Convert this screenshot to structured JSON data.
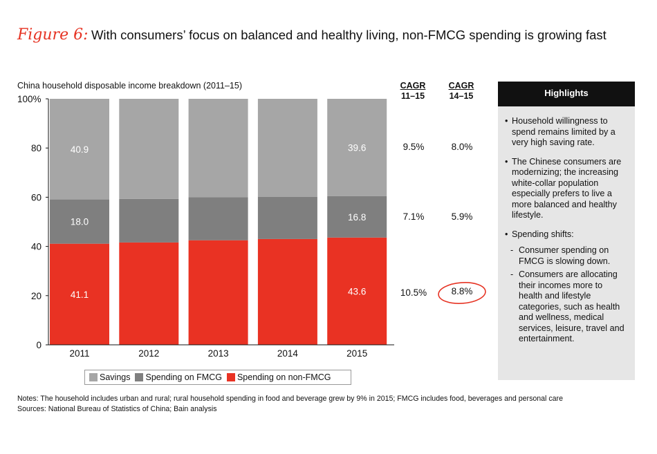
{
  "figure": {
    "label": "Figure 6:",
    "title": "With consumers’ focus on balanced and healthy living, non-FMCG spending is growing fast"
  },
  "chart_data": {
    "type": "bar",
    "stacked": true,
    "title": "China household disposable income breakdown (2011–15)",
    "categories": [
      "2011",
      "2012",
      "2013",
      "2014",
      "2015"
    ],
    "ylim": [
      0,
      100
    ],
    "y_ticks": [
      "0",
      "20",
      "40",
      "60",
      "80",
      "100%"
    ],
    "series": [
      {
        "name": "Spending on non-FMCG",
        "color": "#e93223",
        "values": [
          41.1,
          41.6,
          42.5,
          43.0,
          43.6
        ],
        "labels": [
          "41.1",
          "",
          "",
          "",
          "43.6"
        ]
      },
      {
        "name": "Spending on FMCG",
        "color": "#7f7f7f",
        "values": [
          18.0,
          17.7,
          17.5,
          17.2,
          16.8
        ],
        "labels": [
          "18.0",
          "",
          "",
          "",
          "16.8"
        ]
      },
      {
        "name": "Savings",
        "color": "#a6a6a6",
        "values": [
          40.9,
          40.7,
          40.0,
          39.8,
          39.6
        ],
        "labels": [
          "40.9",
          "",
          "",
          "",
          "39.6"
        ]
      }
    ],
    "legend_position": "bottom",
    "grid": false
  },
  "cagr": {
    "head1_line1": "CAGR",
    "head1_line2": "11–15",
    "head2_line1": "CAGR",
    "head2_line2": "14–15",
    "savings": [
      "9.5%",
      "8.0%"
    ],
    "fmcg": [
      "7.1%",
      "5.9%"
    ],
    "non_fmcg": [
      "10.5%",
      "8.8%"
    ],
    "circle_color": "#e63323"
  },
  "highlights": {
    "heading": "Highlights",
    "b1": "Household willingness to spend remains limited by a very high saving rate.",
    "b2": "The Chinese consumers are modernizing; the increasing white-collar population especially prefers to live a more balanced and healthy lifestyle.",
    "b3": "Spending shifts:",
    "s1": "Consumer spending on FMCG is slowing down.",
    "s2": "Consumers are allocating their incomes more to health and lifestyle categories, such as health and wellness, medical services, leisure, travel and entertainment."
  },
  "notes": {
    "line1": "Notes: The household includes urban and rural; rural household spending in food and beverage grew by 9% in 2015; FMCG includes food, beverages and personal care",
    "line2": "Sources: National Bureau of Statistics of China; Bain analysis"
  }
}
